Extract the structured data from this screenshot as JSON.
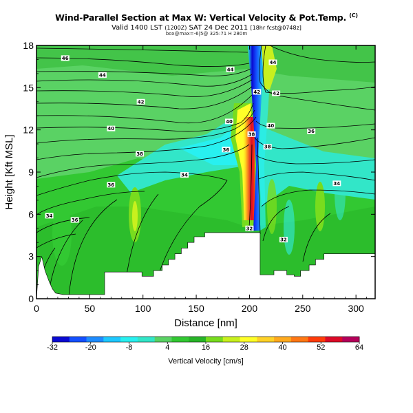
{
  "header": {
    "title": "Wind-Parallel Section at Max W: Vertical Velocity & Pot.Temp.",
    "title_suffix": "(C)",
    "valid_prefix": "Valid 1400 LST",
    "valid_utc": "(1200Z)",
    "valid_date": "SAT 24 Dec 2011",
    "valid_suffix": "[18hr fcst@0748z]",
    "subtitle": "box@max=-6|5@ 325:71 H 280m"
  },
  "chart_data": {
    "type": "heatmap",
    "title": "Wind-Parallel Section at Max W: Vertical Velocity & Pot.Temp.",
    "xlabel": "Distance [nm]",
    "ylabel": "Height [Kft MSL]",
    "xlim": [
      0,
      318
    ],
    "ylim": [
      0,
      18
    ],
    "x_ticks": [
      "0",
      "50",
      "100",
      "150",
      "200",
      "250",
      "300"
    ],
    "y_ticks": [
      "0",
      "3",
      "6",
      "9",
      "12",
      "15",
      "18"
    ],
    "colorbar": {
      "label": "Vertical Velocity [cm/s]",
      "tick_labels": [
        "-32",
        "-20",
        "-8",
        "4",
        "16",
        "28",
        "40",
        "52",
        "64"
      ],
      "min": -32,
      "max": 64,
      "step": 6,
      "colors": [
        "#0a0ad2",
        "#1450ff",
        "#1e8cff",
        "#1ec8ff",
        "#28f0f0",
        "#32e6c8",
        "#5ad264",
        "#32c832",
        "#28b428",
        "#78dc1e",
        "#c8f01e",
        "#ffff28",
        "#ffd228",
        "#ffaa1e",
        "#ff7814",
        "#ff3c0a",
        "#dc0a28",
        "#b4005a"
      ]
    },
    "terrain_profile": [
      [
        0,
        0
      ],
      [
        2,
        2.3
      ],
      [
        5,
        3.0
      ],
      [
        8,
        2.0
      ],
      [
        12,
        1.2
      ],
      [
        15,
        0.7
      ],
      [
        18,
        0.4
      ],
      [
        25,
        0.3
      ],
      [
        48,
        0.3
      ],
      [
        48,
        0.3
      ],
      [
        55,
        0.3
      ],
      [
        64,
        0.3
      ],
      [
        64,
        1.9
      ],
      [
        70,
        1.9
      ],
      [
        99,
        1.9
      ],
      [
        99,
        1.6
      ],
      [
        110,
        1.6
      ],
      [
        110,
        2.0
      ],
      [
        118,
        2.0
      ],
      [
        118,
        2.4
      ],
      [
        124,
        2.4
      ],
      [
        124,
        2.8
      ],
      [
        130,
        2.8
      ],
      [
        130,
        3.2
      ],
      [
        136,
        3.2
      ],
      [
        136,
        3.6
      ],
      [
        142,
        3.6
      ],
      [
        142,
        4.0
      ],
      [
        148,
        4.0
      ],
      [
        148,
        4.4
      ],
      [
        158,
        4.4
      ],
      [
        158,
        4.7
      ],
      [
        210,
        4.7
      ],
      [
        210,
        1.7
      ],
      [
        223,
        1.7
      ],
      [
        223,
        2.0
      ],
      [
        235,
        2.0
      ],
      [
        235,
        1.7
      ],
      [
        242,
        1.7
      ],
      [
        242,
        1.6
      ],
      [
        248,
        1.6
      ],
      [
        248,
        2.0
      ],
      [
        256,
        2.0
      ],
      [
        256,
        2.4
      ],
      [
        262,
        2.4
      ],
      [
        262,
        2.8
      ],
      [
        270,
        2.8
      ],
      [
        270,
        3.2
      ],
      [
        318,
        3.2
      ]
    ],
    "theta_contour_labels": [
      {
        "text": "46",
        "x": 27,
        "y": 17.1
      },
      {
        "text": "44",
        "x": 62,
        "y": 15.9
      },
      {
        "text": "44",
        "x": 182,
        "y": 16.3
      },
      {
        "text": "44",
        "x": 222,
        "y": 16.8
      },
      {
        "text": "42",
        "x": 98,
        "y": 14.0
      },
      {
        "text": "42",
        "x": 207,
        "y": 14.7
      },
      {
        "text": "42",
        "x": 225,
        "y": 14.6
      },
      {
        "text": "40",
        "x": 70,
        "y": 12.1
      },
      {
        "text": "40",
        "x": 181,
        "y": 12.6
      },
      {
        "text": "40",
        "x": 220,
        "y": 12.3
      },
      {
        "text": "38",
        "x": 202,
        "y": 11.7
      },
      {
        "text": "38",
        "x": 97,
        "y": 10.3
      },
      {
        "text": "38",
        "x": 217,
        "y": 10.8
      },
      {
        "text": "36",
        "x": 178,
        "y": 10.6
      },
      {
        "text": "36",
        "x": 258,
        "y": 11.9
      },
      {
        "text": "34",
        "x": 139,
        "y": 8.8
      },
      {
        "text": "36",
        "x": 70,
        "y": 8.1
      },
      {
        "text": "34",
        "x": 282,
        "y": 8.2
      },
      {
        "text": "34",
        "x": 12,
        "y": 5.9
      },
      {
        "text": "36",
        "x": 36,
        "y": 5.6
      },
      {
        "text": "32",
        "x": 232,
        "y": 4.2
      },
      {
        "text": "32",
        "x": 200,
        "y": 5.0
      }
    ]
  }
}
